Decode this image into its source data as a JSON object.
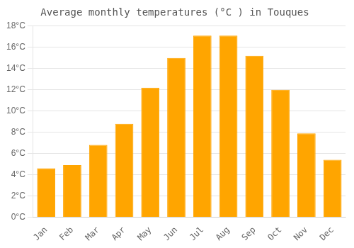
{
  "chart_data": {
    "type": "bar",
    "title": "Average monthly temperatures (°C ) in Touques",
    "categories": [
      "Jan",
      "Feb",
      "Mar",
      "Apr",
      "May",
      "Jun",
      "Jul",
      "Aug",
      "Sep",
      "Oct",
      "Nov",
      "Dec"
    ],
    "values": [
      4.6,
      4.9,
      6.8,
      8.8,
      12.2,
      15.0,
      17.1,
      17.1,
      15.2,
      12.0,
      7.9,
      5.4
    ],
    "color": "#FFA500",
    "ylim": [
      0,
      18
    ],
    "yticks": [
      {
        "value": 0,
        "label": "0°C"
      },
      {
        "value": 2,
        "label": "2°C"
      },
      {
        "value": 4,
        "label": "4°C"
      },
      {
        "value": 6,
        "label": "6°C"
      },
      {
        "value": 8,
        "label": "8°C"
      },
      {
        "value": 10,
        "label": "10°C"
      },
      {
        "value": 12,
        "label": "12°C"
      },
      {
        "value": 14,
        "label": "14°C"
      },
      {
        "value": 16,
        "label": "16°C"
      },
      {
        "value": 18,
        "label": "18°C"
      }
    ],
    "grid": true
  }
}
